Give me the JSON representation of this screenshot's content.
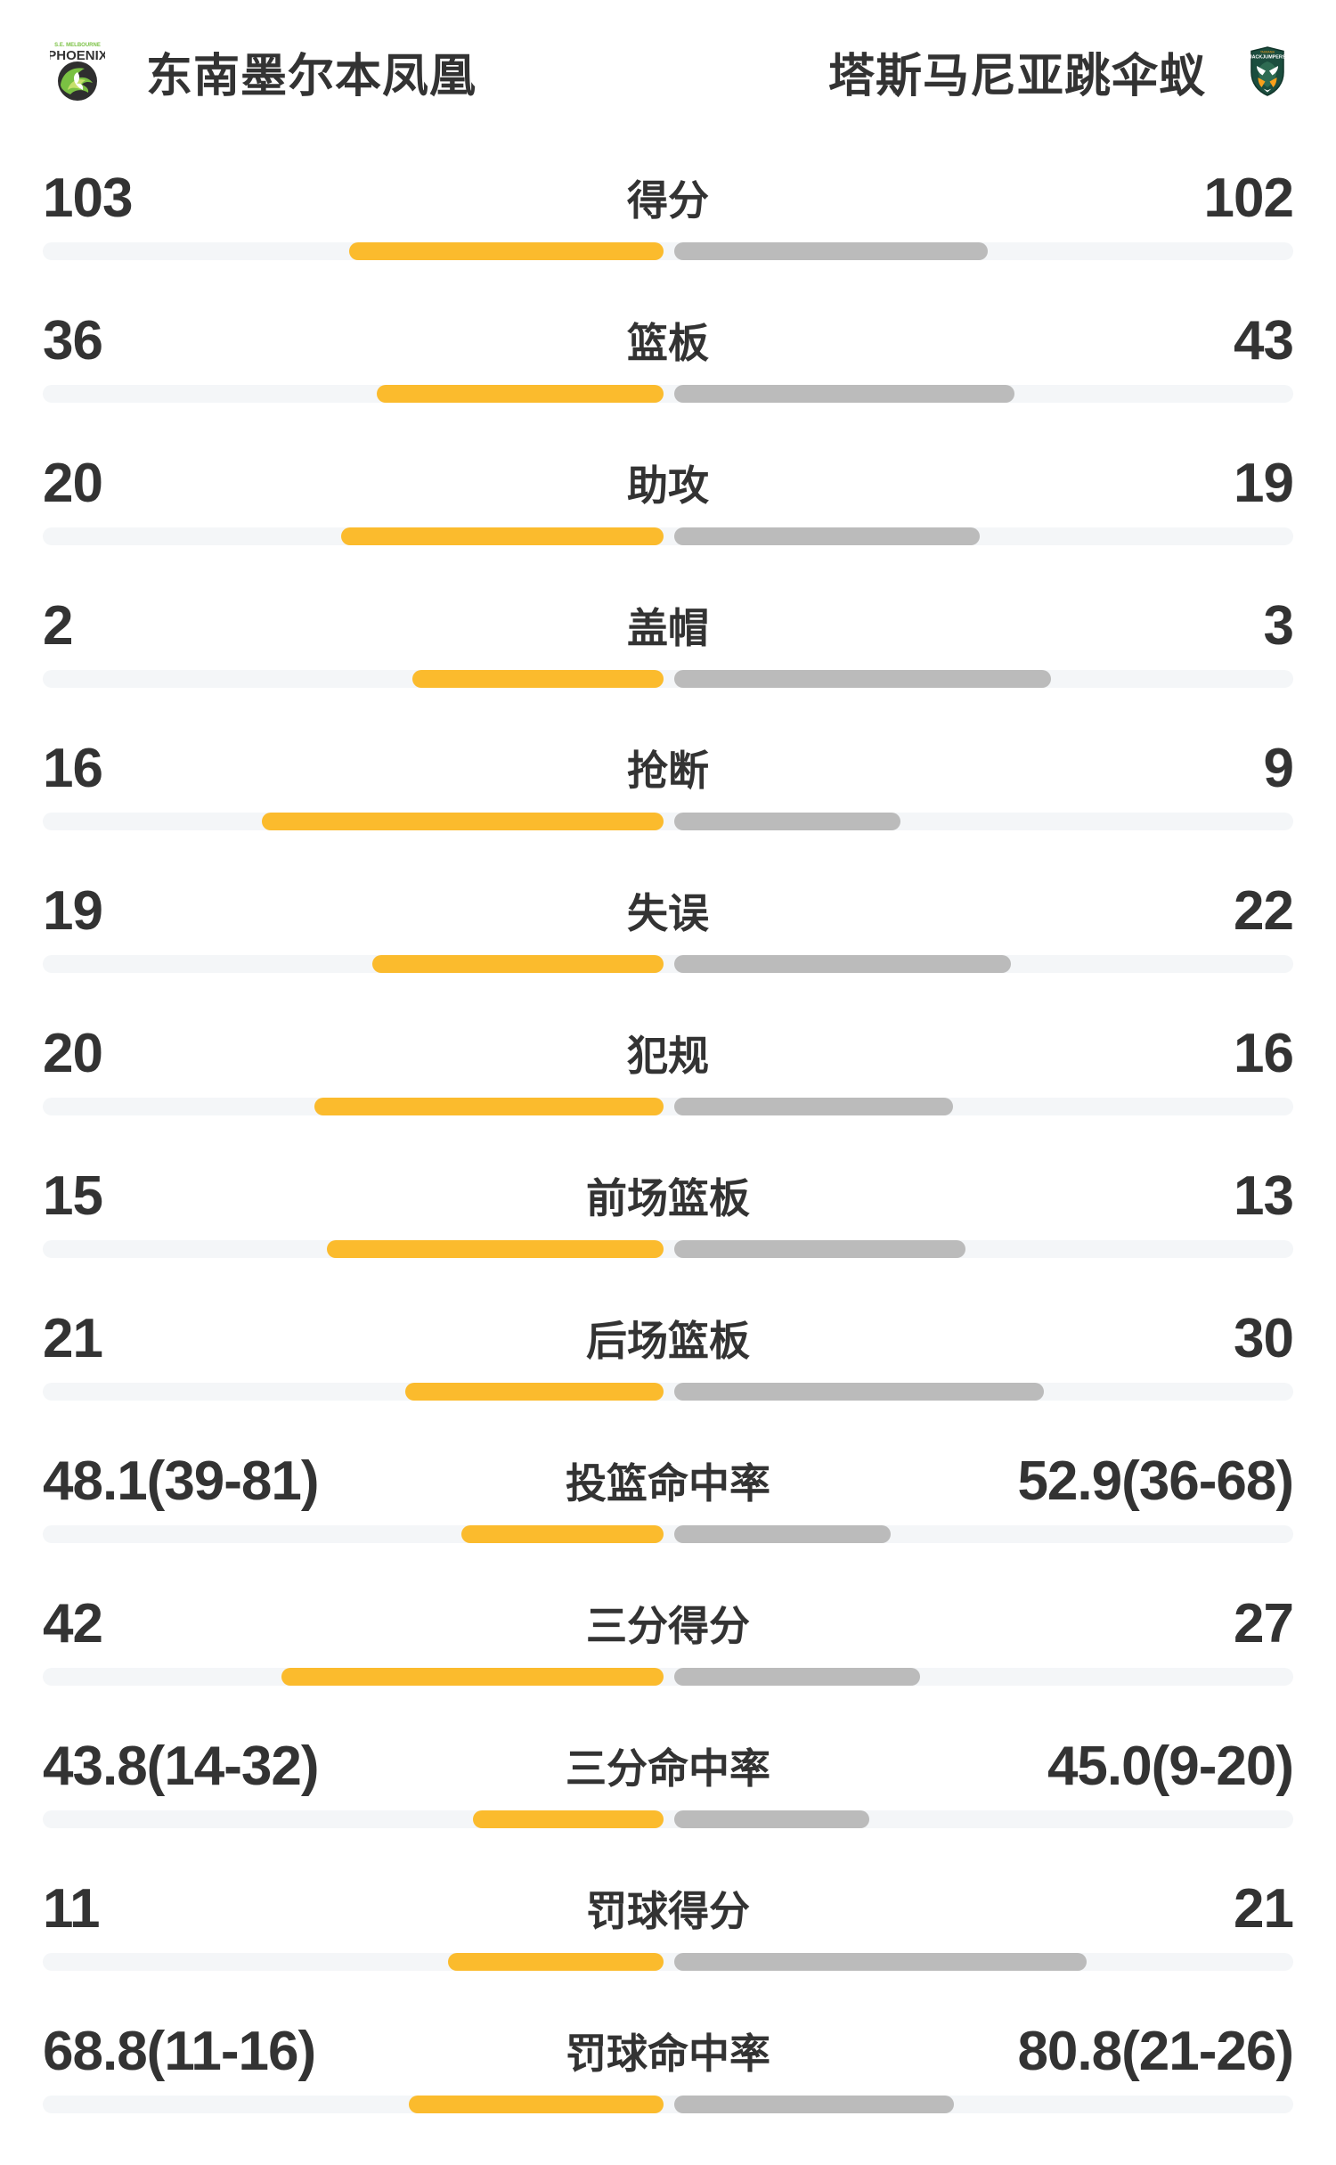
{
  "header": {
    "home": {
      "name": "东南墨尔本凤凰",
      "logo": {
        "icon": "phoenix-logo",
        "top_text": "S.E. MELBOURNE",
        "main_text": "PHOENIX"
      }
    },
    "away": {
      "name": "塔斯马尼亚跳伞蚁",
      "logo": {
        "icon": "jackjumpers-logo",
        "top_text": "TASMANIA",
        "main_text": "JACKJUMPERS"
      }
    }
  },
  "colors": {
    "home_bar": "#FBBB2D",
    "away_bar": "#BBBBBB",
    "track": "#F4F6F8",
    "text": "#333333",
    "phoenix_green": "#7AC143",
    "jackjumpers_green": "#1B4D3E",
    "jackjumpers_accent": "#F9A01B"
  },
  "stats": [
    {
      "label": "得分",
      "left_value": "103",
      "right_value": "102",
      "left_pct": 50.3,
      "right_pct": 50.1
    },
    {
      "label": "篮板",
      "left_value": "36",
      "right_value": "43",
      "left_pct": 45.8,
      "right_pct": 54.4
    },
    {
      "label": "助攻",
      "left_value": "20",
      "right_value": "19",
      "left_pct": 51.6,
      "right_pct": 48.9
    },
    {
      "label": "盖帽",
      "left_value": "2",
      "right_value": "3",
      "left_pct": 40.2,
      "right_pct": 60.2
    },
    {
      "label": "抢断",
      "left_value": "16",
      "right_value": "9",
      "left_pct": 64.2,
      "right_pct": 36.2
    },
    {
      "label": "失误",
      "left_value": "19",
      "right_value": "22",
      "left_pct": 46.6,
      "right_pct": 53.8
    },
    {
      "label": "犯规",
      "left_value": "20",
      "right_value": "16",
      "left_pct": 55.8,
      "right_pct": 44.6
    },
    {
      "label": "前场篮板",
      "left_value": "15",
      "right_value": "13",
      "left_pct": 53.8,
      "right_pct": 46.6
    },
    {
      "label": "后场篮板",
      "left_value": "21",
      "right_value": "30",
      "left_pct": 41.3,
      "right_pct": 59.1
    },
    {
      "label": "投篮命中率",
      "left_value": "48.1(39-81)",
      "right_value": "52.9(36-68)",
      "left_pct": 32.3,
      "right_pct": 34.6
    },
    {
      "label": "三分得分",
      "left_value": "42",
      "right_value": "27",
      "left_pct": 61.1,
      "right_pct": 39.3
    },
    {
      "label": "三分命中率",
      "left_value": "43.8(14-32)",
      "right_value": "45.0(9-20)",
      "left_pct": 30.5,
      "right_pct": 31.2
    },
    {
      "label": "罚球得分",
      "left_value": "11",
      "right_value": "21",
      "left_pct": 34.5,
      "right_pct": 66.0
    },
    {
      "label": "罚球命中率",
      "left_value": "68.8(11-16)",
      "right_value": "80.8(21-26)",
      "left_pct": 40.7,
      "right_pct": 44.7
    }
  ],
  "chart_data": {
    "type": "bar",
    "orientation": "horizontal-paired",
    "categories": [
      "得分",
      "篮板",
      "助攻",
      "盖帽",
      "抢断",
      "失误",
      "犯规",
      "前场篮板",
      "后场篮板",
      "投篮命中率",
      "三分得分",
      "三分命中率",
      "罚球得分",
      "罚球命中率"
    ],
    "series": [
      {
        "name": "东南墨尔本凤凰",
        "values": [
          103,
          36,
          20,
          2,
          16,
          19,
          20,
          15,
          21,
          48.1,
          42,
          43.8,
          11,
          68.8
        ]
      },
      {
        "name": "塔斯马尼亚跳伞蚁",
        "values": [
          102,
          43,
          19,
          3,
          9,
          22,
          16,
          13,
          30,
          52.9,
          27,
          45.0,
          21,
          80.8
        ]
      }
    ],
    "title": "",
    "legend_position": "header",
    "grid": false
  }
}
